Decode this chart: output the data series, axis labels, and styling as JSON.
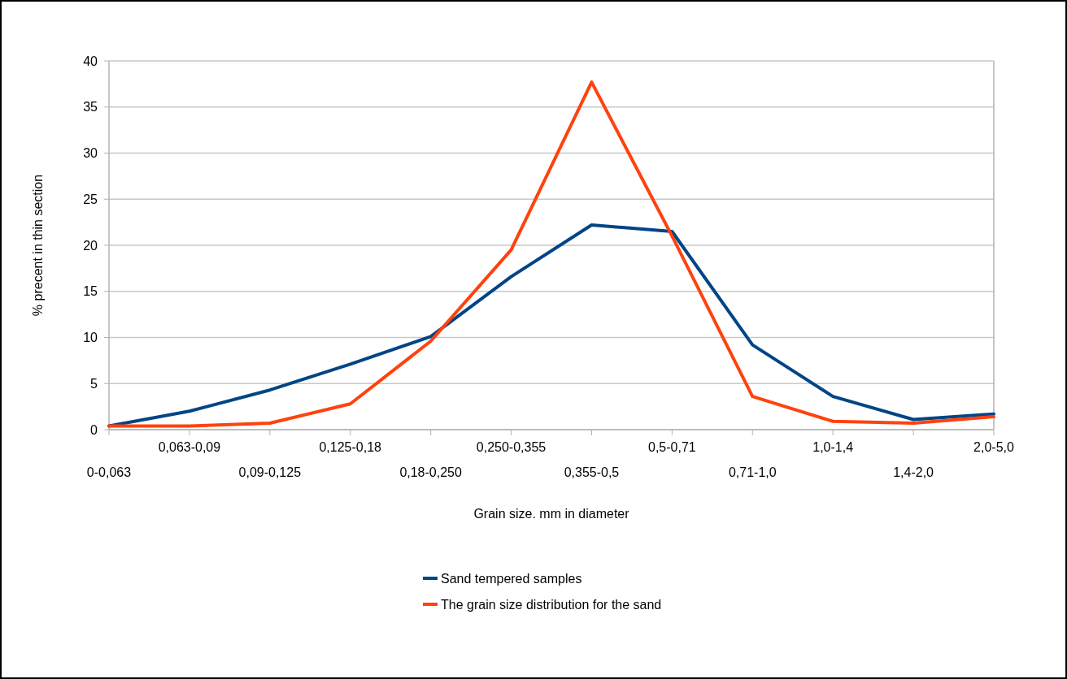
{
  "chart_data": {
    "type": "line",
    "xlabel": "Grain size. mm in diameter",
    "ylabel": "% precent in thin section",
    "categories": [
      "0-0,063",
      "0,063-0,09",
      "0,09-0,125",
      "0,125-0,18",
      "0,18-0,250",
      "0,250-0,355",
      "0,355-0,5",
      "0,5-0,71",
      "0,71-1,0",
      "1,0-1,4",
      "1,4-2,0",
      "2,0-5,0"
    ],
    "series": [
      {
        "name": "Sand tempered samples",
        "color": "#004586",
        "values": [
          0.4,
          2.0,
          4.3,
          7.1,
          10.1,
          16.6,
          22.2,
          21.5,
          9.2,
          3.6,
          1.1,
          1.7
        ]
      },
      {
        "name": "The grain size distribution for the sand",
        "color": "#ff420e",
        "values": [
          0.4,
          0.4,
          0.7,
          2.8,
          9.6,
          19.5,
          37.7,
          21.0,
          3.6,
          0.9,
          0.7,
          1.4
        ]
      }
    ],
    "ylim": [
      0,
      40
    ],
    "yticks": [
      0,
      5,
      10,
      15,
      20,
      25,
      30,
      35,
      40
    ],
    "grid": "y",
    "legend": "bottom",
    "marker": "none",
    "line_style": "solid"
  }
}
